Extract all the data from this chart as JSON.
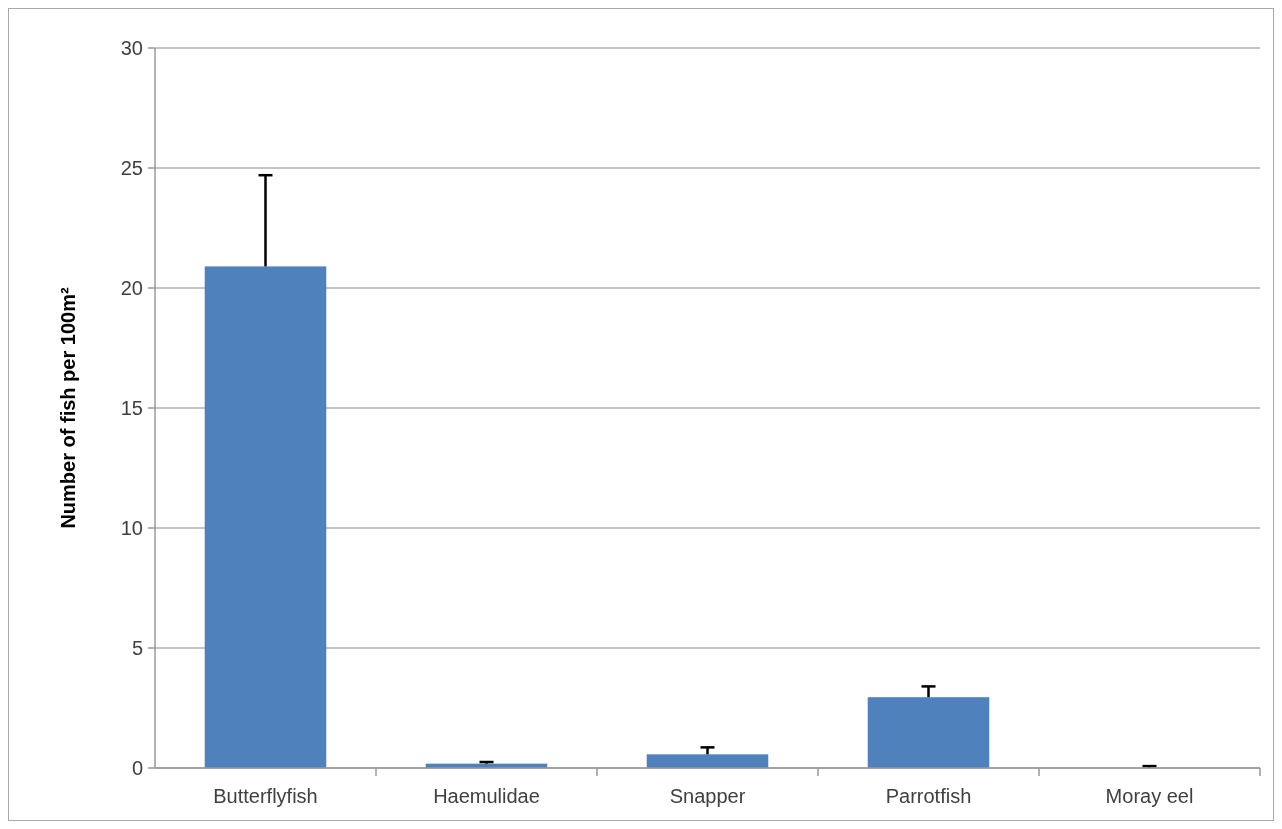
{
  "chart_data": {
    "type": "bar",
    "ylabel": "Number of fish per 100m²",
    "categories": [
      "Butterflyfish",
      "Haemulidae",
      "Snapper",
      "Parrotfish",
      "Moray eel"
    ],
    "values": [
      20.9,
      0.18,
      0.57,
      2.95,
      0
    ],
    "errors": [
      [
        20.9,
        24.7
      ],
      [
        0.18,
        0.25
      ],
      [
        0.57,
        0.86
      ],
      [
        2.95,
        3.4
      ],
      [
        0,
        0.08
      ]
    ],
    "color": "#4f81bd",
    "ylim": [
      0,
      30
    ],
    "yticks": [
      0,
      5,
      10,
      15,
      20,
      25,
      30
    ],
    "grid": "y"
  }
}
